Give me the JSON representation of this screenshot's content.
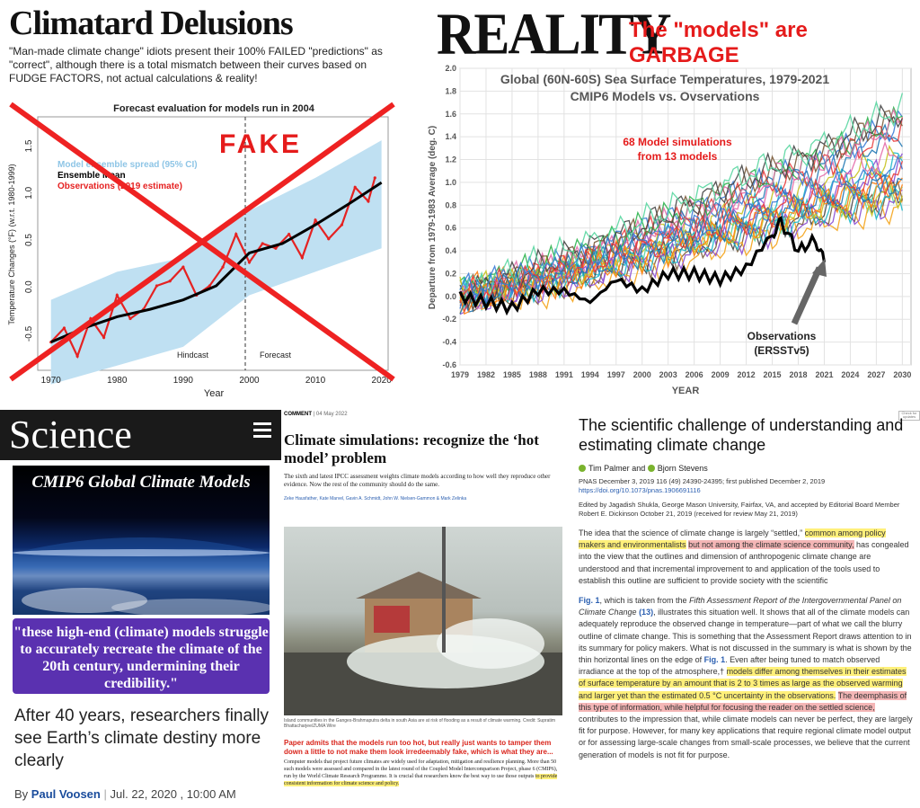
{
  "left_panel": {
    "title": "Climatard Delusions",
    "subtitle": "\"Man-made climate change\" idiots present their 100% FAILED  \"predictions\" as \"correct\", although there is a total mismatch between their curves based on FUDGE FACTORS, not actual calculations & reality!",
    "chart_title": "Forecast evaluation for models run in 2004",
    "fake_stamp": "FAKE",
    "legend": [
      "Model ensemble spread (95% CI)",
      "Ensemble Mean",
      "Observations (2019 estimate)"
    ],
    "ylabel": "Temperature Changes (°F) (w.r.t. 1980-1999)",
    "xlabel": "Year",
    "hindcast": "Hindcast",
    "forecast": "Forecast",
    "x_ticks": [
      "1970",
      "1980",
      "1990",
      "2000",
      "2010",
      "2020"
    ],
    "y_ticks": [
      "-0.5",
      "0.0",
      "0.5",
      "1.0",
      "1.5"
    ]
  },
  "right_panel": {
    "headline": "REALITY",
    "tagline": "The \"models\" are GARBAGE",
    "chart_title_1": "Global (60N-60S) Sea Surface Temperatures, 1979-2021",
    "chart_title_2": "CMIP6 Models vs. Ovservations",
    "models_note_1": "68 Model simulations",
    "models_note_2": "from 13 models",
    "obs_label_1": "Observations",
    "obs_label_2": "(ERSSTv5)",
    "ylabel": "Departure from 1979-1983 Average (deg. C)",
    "xlabel": "YEAR",
    "x_ticks": [
      "1979",
      "1982",
      "1985",
      "1988",
      "1991",
      "1994",
      "1997",
      "2000",
      "2003",
      "2006",
      "2009",
      "2012",
      "2015",
      "2018",
      "2021",
      "2024",
      "2027",
      "2030"
    ],
    "y_ticks": [
      "-0.6",
      "-0.4",
      "-0.2",
      "0.0",
      "0.2",
      "0.4",
      "0.6",
      "0.8",
      "1.0",
      "1.2",
      "1.4",
      "1.6",
      "1.8",
      "2.0"
    ]
  },
  "chart_data": [
    {
      "type": "line",
      "title": "Forecast evaluation for models run in 2004",
      "xlabel": "Year",
      "ylabel": "Temperature Changes (°F) (w.r.t. 1980-1999)",
      "xlim": [
        1968,
        2021
      ],
      "ylim": [
        -0.85,
        1.85
      ],
      "series": [
        {
          "name": "Ensemble Mean",
          "x": [
            1970,
            1975,
            1980,
            1985,
            1990,
            1995,
            2000,
            2005,
            2010,
            2015,
            2020
          ],
          "y": [
            -0.55,
            -0.4,
            -0.28,
            -0.2,
            -0.1,
            0.05,
            0.4,
            0.5,
            0.7,
            0.92,
            1.15
          ]
        },
        {
          "name": "Observations (2019 estimate)",
          "x": [
            1970,
            1972,
            1974,
            1976,
            1978,
            1980,
            1982,
            1984,
            1986,
            1988,
            1990,
            1992,
            1994,
            1996,
            1998,
            2000,
            2002,
            2004,
            2006,
            2008,
            2010,
            2012,
            2014,
            2016,
            2018,
            2019
          ],
          "y": [
            -0.55,
            -0.4,
            -0.7,
            -0.3,
            -0.5,
            -0.05,
            -0.3,
            -0.2,
            0.05,
            0.1,
            0.25,
            -0.05,
            0.05,
            0.25,
            0.6,
            0.3,
            0.5,
            0.45,
            0.6,
            0.35,
            0.75,
            0.55,
            0.7,
            1.1,
            0.95,
            1.2
          ]
        },
        {
          "name": "Model ensemble spread (95% CI)",
          "x": [
            1970,
            1980,
            1990,
            2000,
            2010,
            2020
          ],
          "y_low": [
            -1.0,
            -0.8,
            -0.6,
            -0.05,
            0.2,
            0.45
          ],
          "y_high": [
            -0.1,
            0.2,
            0.35,
            0.85,
            1.2,
            1.6
          ]
        }
      ]
    },
    {
      "type": "line",
      "title": "Global (60N-60S) Sea Surface Temperatures, 1979-2021",
      "subtitle": "CMIP6 Models vs. Ovservations",
      "xlabel": "YEAR",
      "ylabel": "Departure from 1979-1983 Average (deg. C)",
      "xlim": [
        1979,
        2031
      ],
      "ylim": [
        -0.6,
        2.0
      ],
      "series": [
        {
          "name": "Observations",
          "x": [
            1979,
            1982,
            1985,
            1988,
            1991,
            1994,
            1997,
            2000,
            2003,
            2006,
            2009,
            2012,
            2015,
            2016,
            2018,
            2020,
            2021
          ],
          "y": [
            0.0,
            -0.05,
            -0.1,
            0.05,
            0.05,
            -0.05,
            0.15,
            0.05,
            0.2,
            0.2,
            0.15,
            0.25,
            0.55,
            0.65,
            0.4,
            0.5,
            0.3
          ]
        },
        {
          "name": "",
          "x": [
            1979,
            1990,
            2000,
            2010,
            2020,
            2030
          ],
          "y": [
            0.0,
            0.2,
            0.45,
            0.7,
            0.95,
            1.2
          ]
        },
        {
          "name": "",
          "x": [
            1979,
            1990,
            2000,
            2010,
            2020,
            2030
          ],
          "y": [
            0.0,
            0.15,
            0.35,
            0.55,
            0.75,
            0.95
          ]
        },
        {
          "name": "",
          "x": [
            1979,
            1990,
            2000,
            2010,
            2020,
            2030
          ],
          "y": [
            0.0,
            0.25,
            0.55,
            0.85,
            1.15,
            1.5
          ]
        },
        {
          "name": "",
          "x": [
            1979,
            1990,
            2000,
            2010,
            2020,
            2030
          ],
          "y": [
            0.0,
            0.1,
            0.3,
            0.5,
            0.7,
            0.85
          ]
        },
        {
          "name": "",
          "x": [
            1979,
            1990,
            2000,
            2010,
            2020,
            2030
          ],
          "y": [
            0.0,
            0.3,
            0.6,
            0.95,
            1.25,
            1.6
          ]
        },
        {
          "name": "",
          "x": [
            1979,
            1990,
            2000,
            2010,
            2020,
            2030
          ],
          "y": [
            0.0,
            0.18,
            0.4,
            0.62,
            0.85,
            1.05
          ]
        }
      ]
    }
  ],
  "science": {
    "logo": "Science",
    "banner_title": "CMIP6 Global Climate Models",
    "quote": "\"these high-end (climate) models struggle to accurately recreate the climate of the 20th century, undermining their credibility.\"",
    "headline": "After 40 years, researchers finally see Earth’s climate destiny more clearly",
    "by": "By",
    "author": "Paul Voosen",
    "date": "Jul. 22, 2020 , 10:00 AM"
  },
  "nature": {
    "kicker": "COMMENT",
    "date": "04 May 2022",
    "title": "Climate simulations: recognize the ‘hot model’ problem",
    "dek": "The sixth and latest IPCC assessment weights climate models according to how well they reproduce other evidence. Now the rest of the community should do the same.",
    "authors": "Zeke Hausfather, Kate Marvel, Gavin A. Schmidt, John W. Nielsen-Gammon & Mark Zelinka",
    "caption": "Island communities in the Ganges-Brahmaputra delta in south Asia are at risk of flooding as a result of climate warming. Credit: Supratim Bhattacharjee/ZUMA Wire",
    "red_note": "Paper admits that the models run too hot, but really just wants to tamper them down a little to not make them look irredeemably fake, which is what they are...",
    "body_plain": "Computer models that project future climates are widely used for adaptation, mitigation and resilience planning. More than 50 such models were assessed and compared in the latest round of the Coupled Model Intercomparison Project, phase 6 (CMIP6), run by the World Climate Research Programme. It is crucial that researchers know the best way to use those outputs",
    "body_highlight": "to provide consistent information for climate science and policy."
  },
  "pnas": {
    "badge": "Check for updates",
    "title": "The scientific challenge of understanding and estimating climate change",
    "author1": "Tim Palmer",
    "and": "and",
    "author2": "Bjorn Stevens",
    "citation": "PNAS December 3, 2019 116 (49) 24390-24395; first published December 2, 2019",
    "doi": "https://doi.org/10.1073/pnas.1906691116",
    "edited": "Edited by Jagadish Shukla, George Mason University, Fairfax, VA, and accepted by Editorial Board Member Robert E. Dickinson October 21, 2019 (received for review May 21, 2019)",
    "p1_a": "The idea that the science of climate change is largely “settled,” ",
    "p1_hl1": "common among policy makers and environmentalists",
    "p1_space": " ",
    "p1_hl2": "but not among the climate science community,",
    "p1_b": " has congealed into the view that the outlines and dimension of anthropogenic climate change are understood and that incremental improvement to and application of the tools used to establish this outline are sufficient to provide society with the scientific",
    "p2_fig": "Fig. 1",
    "p2_a": ", which is taken from the ",
    "p2_ital": "Fifth Assessment Report of the Intergovernmental Panel on Climate Change",
    "p2_ref": "(13)",
    "p2_b": ", illustrates this situation well. It shows that all of the climate models can adequately reproduce the observed change in temperature—part of what we call the blurry outline of climate change. This is something that the Assessment Report draws attention to in its summary for policy makers. What is not discussed in the summary is what is shown by the thin horizontal lines on the edge of ",
    "p2_fig2": "Fig. 1",
    "p2_c": ". Even after being tuned to match observed irradiance at the top of the atmosphere,† ",
    "p2_hl": "models differ among themselves in their estimates of surface temperature by an amount that is 2 to 3 times as large as the observed warming and larger yet than the estimated 0.5 °C uncertainty in the observations.",
    "p2_space": " ",
    "p2_red": "The deemphasis of this type of information, while helpful for focusing the reader on the settled science,",
    "p2_d": " contributes to the impression that, while climate models can never be perfect, they are largely fit for purpose. However, for many key applications that require regional climate model output or for assessing large-scale changes from small-scale processes, we believe that the current generation of models is not fit for purpose."
  },
  "colors": {
    "accent_red": "#e51b1b",
    "science_purple": "#5a31b0",
    "link_blue": "#2b5fb0",
    "highlight_yellow": "#fff07a",
    "highlight_red": "#f4b6b6"
  }
}
